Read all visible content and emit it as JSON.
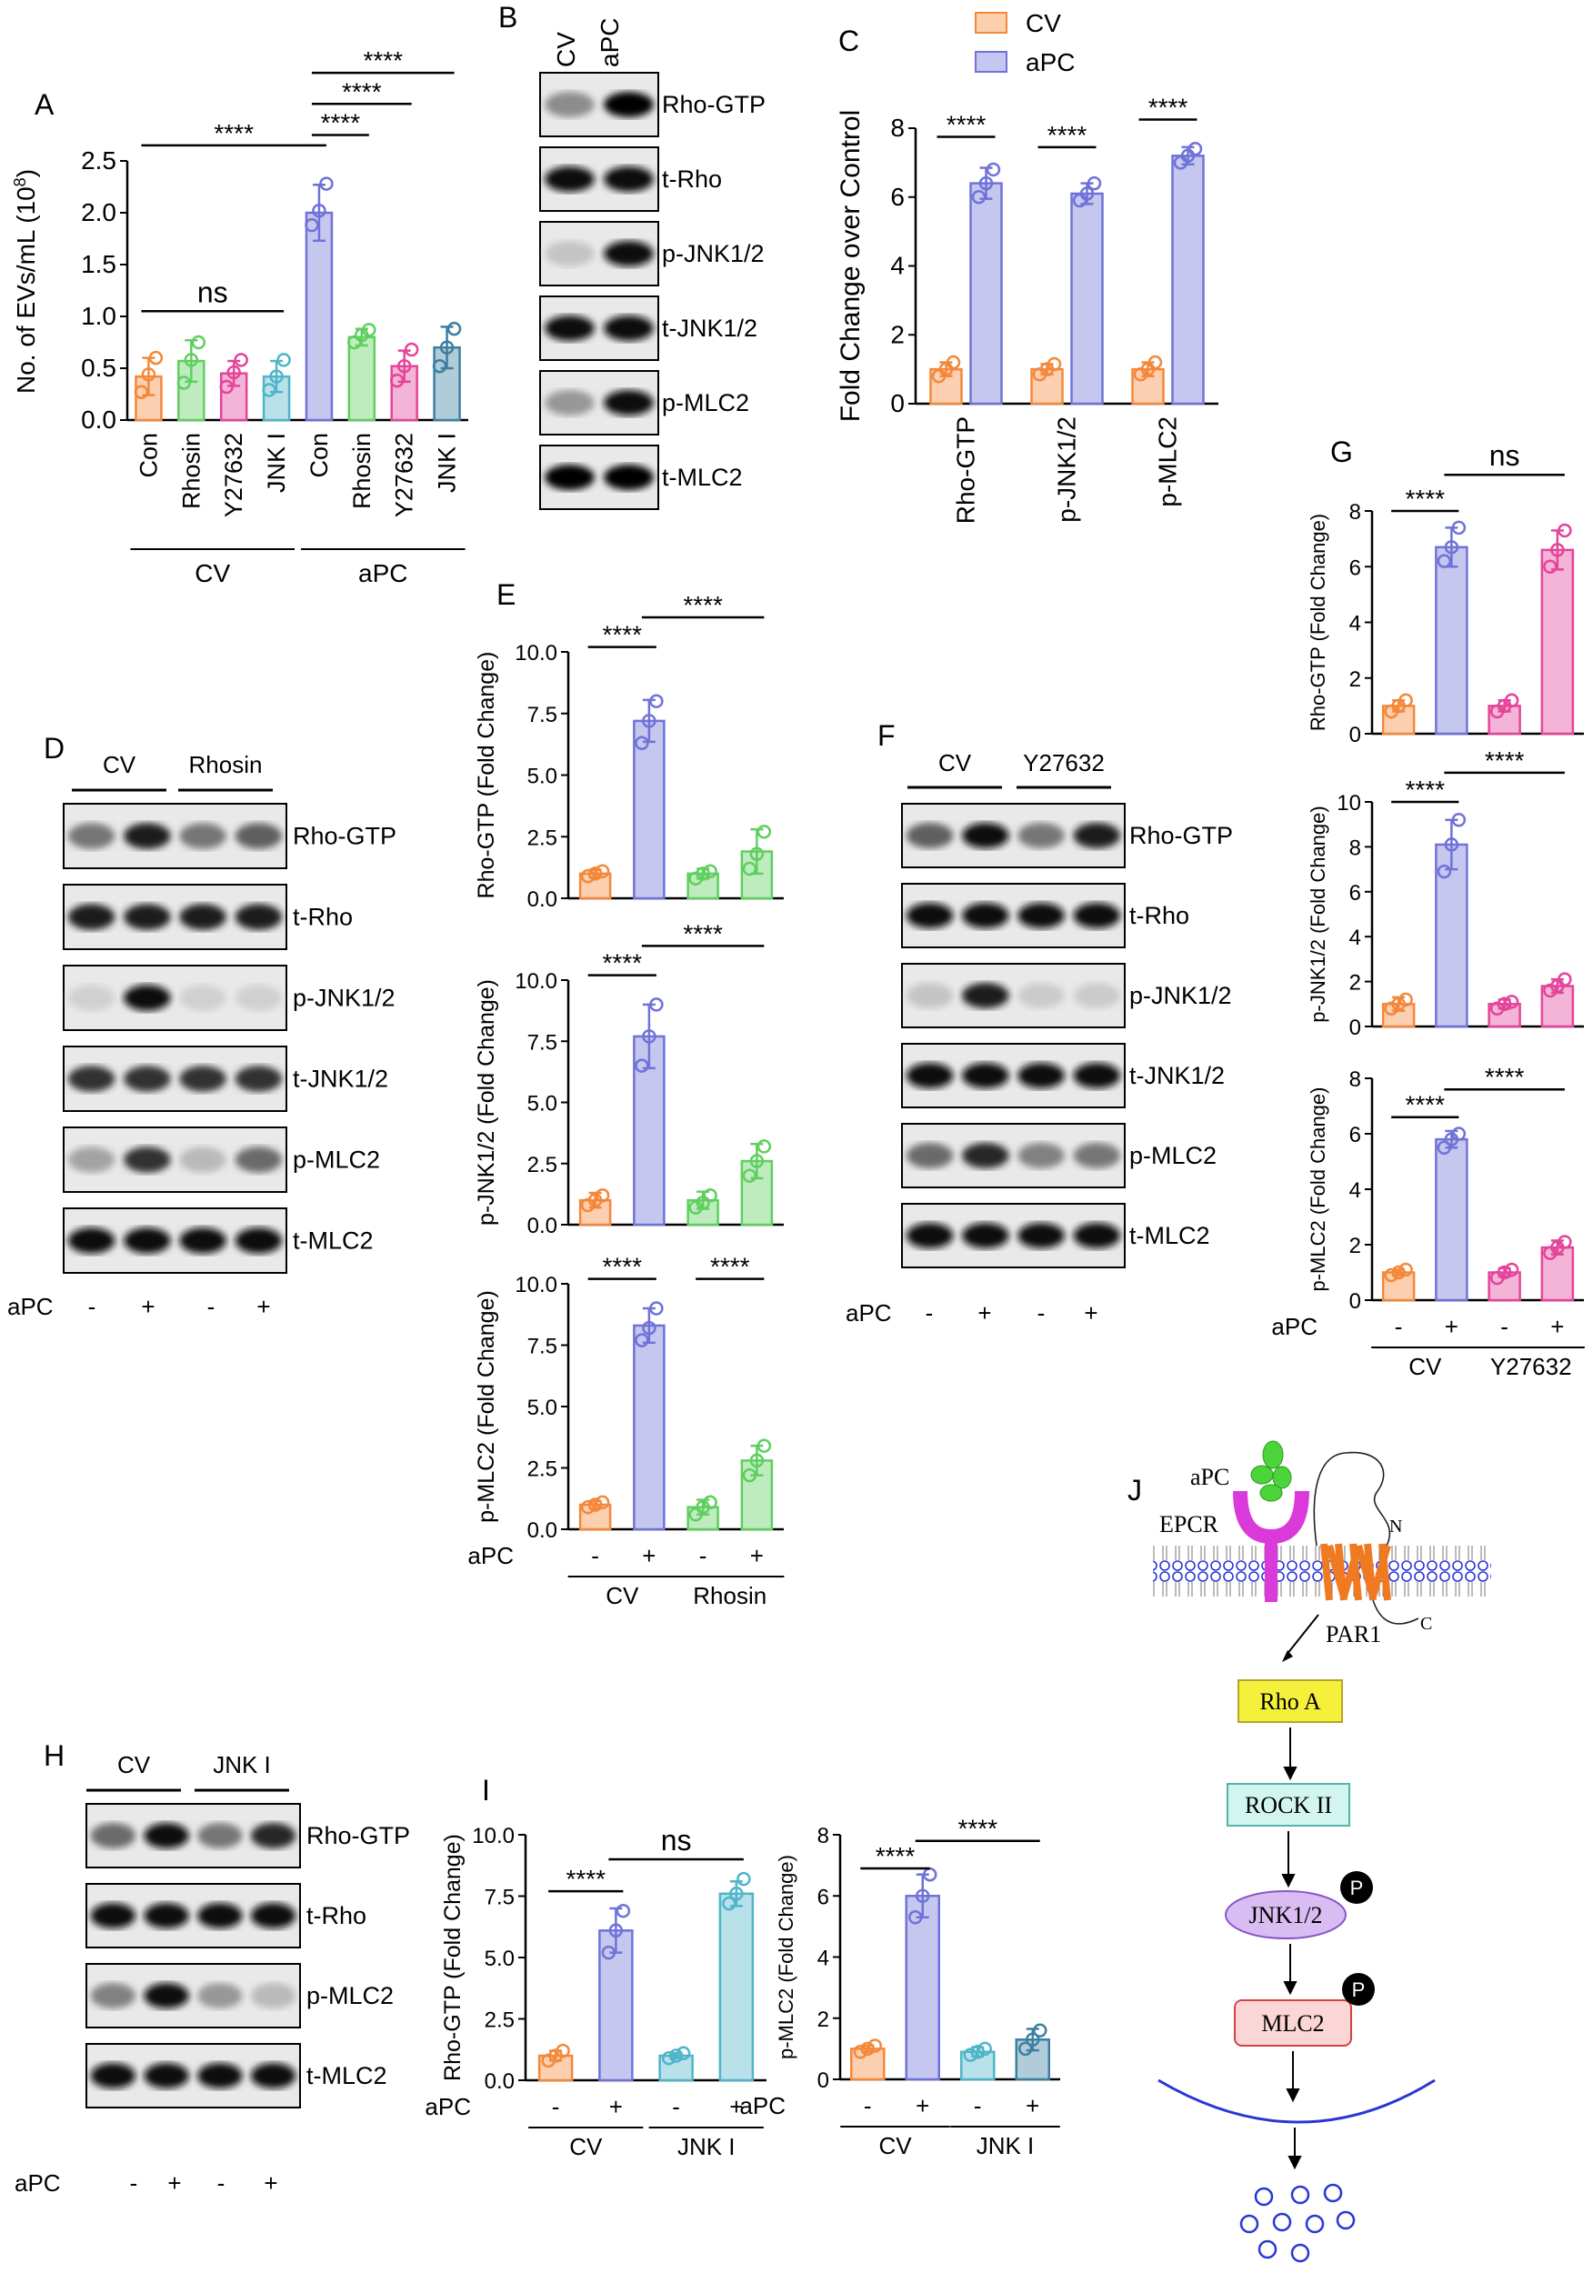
{
  "colors": {
    "cv": "#f4883a",
    "apc": "#6f73d8",
    "rhosin": "#5fcf5f",
    "y27632": "#e4449a",
    "jnki": "#4fb5c9",
    "jnki_dark": "#3d7fa0"
  },
  "legend": [
    "CV",
    "aPC"
  ],
  "panel_labels": {
    "A": "A",
    "B": "B",
    "C": "C",
    "D": "D",
    "E": "E",
    "F": "F",
    "G": "G",
    "H": "H",
    "I": "I",
    "J": "J"
  },
  "stars": "****",
  "ns": "ns",
  "blots": {
    "B": {
      "lanes": [
        "CV",
        "aPC"
      ],
      "rows": [
        "Rho-GTP",
        "t-Rho",
        "p-JNK1/2",
        "t-JNK1/2",
        "p-MLC2",
        "t-MLC2"
      ]
    },
    "D": {
      "groups": [
        "CV",
        "Rhosin"
      ],
      "rows": [
        "Rho-GTP",
        "t-Rho",
        "p-JNK1/2",
        "t-JNK1/2",
        "p-MLC2",
        "t-MLC2"
      ],
      "apc_label": "aPC",
      "signs": [
        "-",
        "+",
        "-",
        "+"
      ]
    },
    "F": {
      "groups": [
        "CV",
        "Y27632"
      ],
      "rows": [
        "Rho-GTP",
        "t-Rho",
        "p-JNK1/2",
        "t-JNK1/2",
        "p-MLC2",
        "t-MLC2"
      ],
      "apc_label": "aPC",
      "signs": [
        "-",
        "+",
        "-",
        "+"
      ]
    },
    "H": {
      "groups": [
        "CV",
        "JNK I"
      ],
      "rows": [
        "Rho-GTP",
        "t-Rho",
        "p-MLC2",
        "t-MLC2"
      ],
      "apc_label": "aPC",
      "signs": [
        "-",
        "+",
        "-",
        "+"
      ]
    }
  },
  "pathway": {
    "apc": "aPC",
    "epcr": "EPCR",
    "n": "N",
    "c": "C",
    "par1": "PAR1",
    "nodes": [
      "Rho A",
      "ROCK II",
      "JNK1/2",
      "MLC2"
    ],
    "p": "P"
  },
  "chart_data": [
    {
      "id": "A",
      "type": "bar",
      "ylabel": "No. of EVs/mL (10",
      "ylabel_sup": "8",
      "ylabel_end": ")",
      "ylim": [
        0,
        2.5
      ],
      "yticks": [
        "0.0",
        "0.5",
        "1.0",
        "1.5",
        "2.0",
        "2.5"
      ],
      "categories": [
        "Con",
        "Rhosin",
        "Y27632",
        "JNK I",
        "Con",
        "Rhosin",
        "Y27632",
        "JNK I"
      ],
      "groups": [
        "CV",
        "aPC"
      ],
      "values": [
        0.42,
        0.57,
        0.45,
        0.42,
        2.0,
        0.8,
        0.52,
        0.7
      ],
      "sd": [
        0.18,
        0.2,
        0.12,
        0.15,
        0.27,
        0.08,
        0.15,
        0.2
      ],
      "points": [
        [
          0.27,
          0.44,
          0.6
        ],
        [
          0.36,
          0.58,
          0.75
        ],
        [
          0.32,
          0.46,
          0.58
        ],
        [
          0.29,
          0.42,
          0.58
        ],
        [
          1.88,
          2.02,
          2.28
        ],
        [
          0.75,
          0.82,
          0.87
        ],
        [
          0.38,
          0.52,
          0.68
        ],
        [
          0.52,
          0.7,
          0.88
        ]
      ],
      "color_keys": [
        "cv",
        "rhosin",
        "y27632",
        "jnki",
        "apc",
        "rhosin",
        "y27632",
        "jnki_dark"
      ],
      "annotations": [
        {
          "a": 0,
          "b": 3,
          "y": 1.05,
          "label": "ns"
        },
        {
          "a": 0,
          "b": 4,
          "y": 2.65,
          "label": "****"
        },
        {
          "a": 4,
          "b": 5,
          "y": 2.75,
          "label": "****"
        },
        {
          "a": 4,
          "b": 6,
          "y": 3.05,
          "label": "****"
        },
        {
          "a": 4,
          "b": 7,
          "y": 3.35,
          "label": "****"
        }
      ]
    },
    {
      "id": "C",
      "type": "bar",
      "ylabel": "Fold Change over Control",
      "ylim": [
        0,
        8
      ],
      "yticks": [
        "0",
        "2",
        "4",
        "6",
        "8"
      ],
      "categories": [
        "Rho-GTP",
        "p-JNK1/2",
        "p-MLC2"
      ],
      "series": [
        {
          "name": "CV",
          "values": [
            1.0,
            1.0,
            1.0
          ],
          "points": [
            [
              0.8,
              1.0,
              1.2
            ],
            [
              0.85,
              1.0,
              1.15
            ],
            [
              0.85,
              1.0,
              1.2
            ]
          ]
        },
        {
          "name": "aPC",
          "values": [
            6.4,
            6.1,
            7.2
          ],
          "points": [
            [
              6.0,
              6.4,
              6.8
            ],
            [
              5.9,
              6.1,
              6.4
            ],
            [
              7.0,
              7.2,
              7.4
            ]
          ]
        }
      ],
      "sd_apc": [
        0.45,
        0.3,
        0.25
      ],
      "sd_cv": [
        0.2,
        0.15,
        0.2
      ]
    },
    {
      "id": "E1",
      "type": "bar",
      "ylabel": "Rho-GTP (Fold Change)",
      "ylim": [
        0,
        10
      ],
      "yticks": [
        "0.0",
        "2.5",
        "5.0",
        "7.5",
        "10.0"
      ],
      "values": [
        1.0,
        7.2,
        1.0,
        1.9
      ],
      "sd": [
        0.15,
        0.85,
        0.2,
        0.9
      ],
      "points": [
        [
          0.9,
          1.0,
          1.1
        ],
        [
          6.3,
          7.2,
          8.0
        ],
        [
          0.8,
          1.0,
          1.1
        ],
        [
          1.2,
          1.8,
          2.7
        ]
      ],
      "color_keys": [
        "cv",
        "apc",
        "rhosin",
        "rhosin"
      ],
      "annotations": [
        {
          "a": 0,
          "b": 1,
          "y": 10.2,
          "label": "****"
        },
        {
          "a": 1,
          "b": 3,
          "y": 11.4,
          "label": "****"
        }
      ]
    },
    {
      "id": "E2",
      "type": "bar",
      "ylabel": "p-JNK1/2 (Fold Change)",
      "ylim": [
        0,
        10
      ],
      "yticks": [
        "0.0",
        "2.5",
        "5.0",
        "7.5",
        "10.0"
      ],
      "values": [
        1.0,
        7.7,
        1.0,
        2.6
      ],
      "sd": [
        0.3,
        1.3,
        0.35,
        0.7
      ],
      "points": [
        [
          0.8,
          1.0,
          1.2
        ],
        [
          6.5,
          7.7,
          9.0
        ],
        [
          0.7,
          0.9,
          1.2
        ],
        [
          2.0,
          2.6,
          3.2
        ]
      ],
      "color_keys": [
        "cv",
        "apc",
        "rhosin",
        "rhosin"
      ],
      "annotations": [
        {
          "a": 0,
          "b": 1,
          "y": 10.2,
          "label": "****"
        },
        {
          "a": 1,
          "b": 3,
          "y": 11.4,
          "label": "****"
        }
      ]
    },
    {
      "id": "E3",
      "type": "bar",
      "ylabel": "p-MLC2 (Fold Change)",
      "ylim": [
        0,
        10
      ],
      "yticks": [
        "0.0",
        "2.5",
        "5.0",
        "7.5",
        "10.0"
      ],
      "values": [
        1.0,
        8.3,
        0.9,
        2.8
      ],
      "sd": [
        0.15,
        0.7,
        0.3,
        0.6
      ],
      "points": [
        [
          0.9,
          1.0,
          1.1
        ],
        [
          7.7,
          8.2,
          9.0
        ],
        [
          0.6,
          0.9,
          1.1
        ],
        [
          2.2,
          2.8,
          3.4
        ]
      ],
      "color_keys": [
        "cv",
        "apc",
        "rhosin",
        "rhosin"
      ],
      "annotations": [
        {
          "a": 0,
          "b": 1,
          "y": 10.2,
          "label": "****"
        },
        {
          "a": 2,
          "b": 3,
          "y": 10.2,
          "label": "****"
        }
      ],
      "xgroups": [
        "CV",
        "Rhosin"
      ],
      "apc_label": "aPC",
      "signs": [
        "-",
        "+",
        "-",
        "+"
      ]
    },
    {
      "id": "G1",
      "type": "bar",
      "ylabel": "Rho-GTP (Fold Change)",
      "ylim": [
        0,
        8
      ],
      "yticks": [
        "0",
        "2",
        "4",
        "6",
        "8"
      ],
      "values": [
        1.0,
        6.7,
        1.0,
        6.6
      ],
      "sd": [
        0.2,
        0.7,
        0.2,
        0.7
      ],
      "points": [
        [
          0.8,
          1.0,
          1.2
        ],
        [
          6.2,
          6.7,
          7.4
        ],
        [
          0.8,
          1.0,
          1.2
        ],
        [
          6.0,
          6.6,
          7.3
        ]
      ],
      "color_keys": [
        "cv",
        "apc",
        "y27632",
        "y27632"
      ],
      "annotations": [
        {
          "a": 0,
          "b": 1,
          "y": 8.0,
          "label": "****"
        },
        {
          "a": 1,
          "b": 3,
          "y": 9.3,
          "label": "ns"
        }
      ]
    },
    {
      "id": "G2",
      "type": "bar",
      "ylabel": "p-JNK1/2 (Fold Change)",
      "ylim": [
        0,
        10
      ],
      "yticks": [
        "0",
        "2",
        "4",
        "6",
        "8",
        "10"
      ],
      "values": [
        1.0,
        8.1,
        1.0,
        1.8
      ],
      "sd": [
        0.3,
        1.1,
        0.2,
        0.3
      ],
      "points": [
        [
          0.8,
          1.0,
          1.2
        ],
        [
          6.9,
          8.1,
          9.2
        ],
        [
          0.8,
          1.0,
          1.1
        ],
        [
          1.6,
          1.8,
          2.1
        ]
      ],
      "color_keys": [
        "cv",
        "apc",
        "y27632",
        "y27632"
      ],
      "annotations": [
        {
          "a": 0,
          "b": 1,
          "y": 10.0,
          "label": "****"
        },
        {
          "a": 1,
          "b": 3,
          "y": 11.3,
          "label": "****"
        }
      ]
    },
    {
      "id": "G3",
      "type": "bar",
      "ylabel": "p-MLC2 (Fold Change)",
      "ylim": [
        0,
        8
      ],
      "yticks": [
        "0",
        "2",
        "4",
        "6",
        "8"
      ],
      "values": [
        1.0,
        5.8,
        1.0,
        1.9
      ],
      "sd": [
        0.1,
        0.3,
        0.15,
        0.25
      ],
      "points": [
        [
          0.9,
          1.0,
          1.1
        ],
        [
          5.5,
          5.8,
          6.0
        ],
        [
          0.8,
          1.0,
          1.1
        ],
        [
          1.7,
          1.9,
          2.1
        ]
      ],
      "color_keys": [
        "cv",
        "apc",
        "y27632",
        "y27632"
      ],
      "annotations": [
        {
          "a": 0,
          "b": 1,
          "y": 6.6,
          "label": "****"
        },
        {
          "a": 1,
          "b": 3,
          "y": 7.6,
          "label": "****"
        }
      ],
      "xgroups": [
        "CV",
        "Y27632"
      ],
      "apc_label": "aPC",
      "signs": [
        "-",
        "+",
        "-",
        "+"
      ]
    },
    {
      "id": "I1",
      "type": "bar",
      "ylabel": "Rho-GTP (Fold Change)",
      "ylim": [
        0,
        10
      ],
      "yticks": [
        "0.0",
        "2.5",
        "5.0",
        "7.5",
        "10.0"
      ],
      "values": [
        1.0,
        6.1,
        1.0,
        7.6
      ],
      "sd": [
        0.2,
        0.9,
        0.1,
        0.5
      ],
      "points": [
        [
          0.8,
          1.0,
          1.2
        ],
        [
          5.2,
          6.1,
          6.9
        ],
        [
          0.9,
          1.0,
          1.1
        ],
        [
          7.2,
          7.6,
          8.2
        ]
      ],
      "color_keys": [
        "cv",
        "apc",
        "jnki",
        "jnki"
      ],
      "annotations": [
        {
          "a": 0,
          "b": 1,
          "y": 7.7,
          "label": "****"
        },
        {
          "a": 1,
          "b": 3,
          "y": 9.0,
          "label": "ns"
        }
      ],
      "xgroups": [
        "CV",
        "JNK I"
      ],
      "apc_label": "aPC",
      "signs": [
        "-",
        "+",
        "-",
        "+"
      ]
    },
    {
      "id": "I2",
      "type": "bar",
      "ylabel": "p-MLC2 (Fold Change)",
      "ylim": [
        0,
        8
      ],
      "yticks": [
        "0",
        "2",
        "4",
        "6",
        "8"
      ],
      "values": [
        1.0,
        6.0,
        0.9,
        1.3
      ],
      "sd": [
        0.1,
        0.7,
        0.15,
        0.35
      ],
      "points": [
        [
          0.9,
          1.0,
          1.1
        ],
        [
          5.3,
          6.0,
          6.7
        ],
        [
          0.8,
          0.9,
          1.0
        ],
        [
          1.0,
          1.3,
          1.6
        ]
      ],
      "color_keys": [
        "cv",
        "apc",
        "jnki",
        "jnki_dark"
      ],
      "annotations": [
        {
          "a": 0,
          "b": 1,
          "y": 6.9,
          "label": "****"
        },
        {
          "a": 1,
          "b": 3,
          "y": 7.8,
          "label": "****"
        }
      ],
      "xgroups": [
        "CV",
        "JNK I"
      ],
      "apc_label": "aPC",
      "signs": [
        "-",
        "+",
        "-",
        "+"
      ]
    }
  ]
}
